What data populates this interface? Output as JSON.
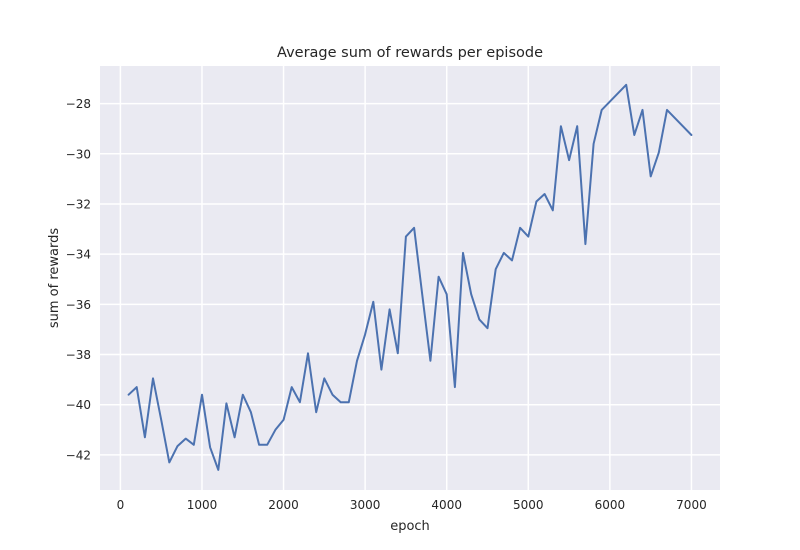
{
  "chart_data": {
    "type": "line",
    "title": "Average sum of rewards per episode",
    "xlabel": "epoch",
    "ylabel": "sum of rewards",
    "xlim": [
      -250,
      7350
    ],
    "ylim": [
      -43.4,
      -26.5
    ],
    "xticks": [
      0,
      1000,
      2000,
      3000,
      4000,
      5000,
      6000,
      7000
    ],
    "yticks": [
      -42,
      -40,
      -38,
      -36,
      -34,
      -32,
      -30,
      -28
    ],
    "xtick_labels": [
      "0",
      "1000",
      "2000",
      "3000",
      "4000",
      "5000",
      "6000",
      "7000"
    ],
    "ytick_labels": [
      "−42",
      "−40",
      "−38",
      "−36",
      "−34",
      "−32",
      "−30",
      "−28"
    ],
    "grid": true,
    "background": "#eaeaf2",
    "series": [
      {
        "color": "#4c72b0",
        "x": [
          100,
          200,
          300,
          400,
          500,
          600,
          700,
          800,
          900,
          1000,
          1100,
          1200,
          1300,
          1400,
          1500,
          1600,
          1700,
          1800,
          1900,
          2000,
          2100,
          2200,
          2300,
          2400,
          2500,
          2600,
          2700,
          2800,
          2900,
          3000,
          3100,
          3200,
          3300,
          3400,
          3500,
          3600,
          3700,
          3800,
          3900,
          4000,
          4100,
          4200,
          4300,
          4400,
          4500,
          4600,
          4700,
          4800,
          4900,
          5000,
          5100,
          5200,
          5300,
          5400,
          5500,
          5600,
          5700,
          5800,
          5900,
          6200,
          6300,
          6400,
          6500,
          6600,
          6700,
          7000
        ],
        "y": [
          -39.6,
          -39.3,
          -41.3,
          -38.95,
          -40.6,
          -42.3,
          -41.65,
          -41.35,
          -41.6,
          -39.6,
          -41.7,
          -42.6,
          -39.95,
          -41.3,
          -39.6,
          -40.3,
          -41.6,
          -41.6,
          -41.0,
          -40.6,
          -39.3,
          -39.9,
          -37.95,
          -40.3,
          -38.95,
          -39.6,
          -39.9,
          -39.9,
          -38.25,
          -37.2,
          -35.9,
          -38.6,
          -36.2,
          -37.95,
          -33.3,
          -32.95,
          -35.6,
          -38.25,
          -34.9,
          -35.6,
          -39.3,
          -33.95,
          -35.6,
          -36.6,
          -36.95,
          -34.6,
          -33.95,
          -34.25,
          -32.95,
          -33.3,
          -31.9,
          -31.6,
          -32.25,
          -28.9,
          -30.25,
          -28.9,
          -33.6,
          -29.6,
          -28.25,
          -27.25,
          -29.25,
          -28.25,
          -30.9,
          -29.95,
          -28.25,
          -29.25
        ]
      }
    ]
  }
}
